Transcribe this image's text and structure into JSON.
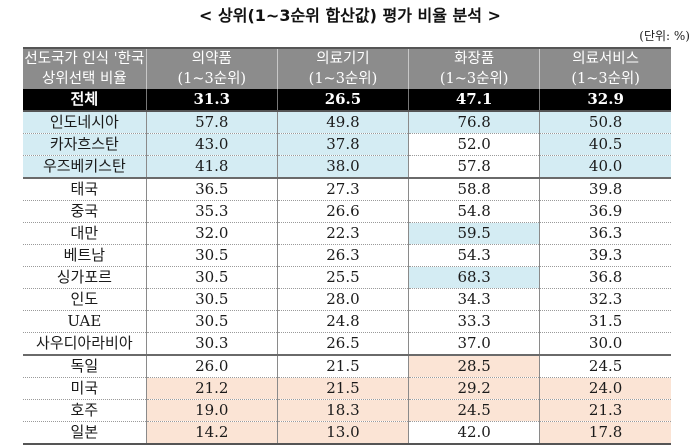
{
  "title": "< 상위(1~3순위 합산값) 평가 비율 분석 >",
  "unit": "(단위: %)",
  "header": {
    "row1": [
      "선도국가 인식 '한국",
      "의약품",
      "의료기기",
      "화장품",
      "의료서비스"
    ],
    "row2": [
      "상위선택 비율",
      "(1~3순위)",
      "(1~3순위)",
      "(1~3순위)",
      "(1~3순위)"
    ]
  },
  "total": {
    "label": "전체",
    "values": [
      "31.3",
      "26.5",
      "47.1",
      "32.9"
    ]
  },
  "rows": [
    {
      "country": "인도네시아",
      "values": [
        "57.8",
        "49.8",
        "76.8",
        "50.8"
      ]
    },
    {
      "country": "카자흐스탄",
      "values": [
        "43.0",
        "37.8",
        "52.0",
        "40.5"
      ]
    },
    {
      "country": "우즈베키스탄",
      "values": [
        "41.8",
        "38.0",
        "57.8",
        "40.0"
      ]
    },
    {
      "country": "태국",
      "values": [
        "36.5",
        "27.3",
        "58.8",
        "39.8"
      ]
    },
    {
      "country": "중국",
      "values": [
        "35.3",
        "26.6",
        "54.8",
        "36.9"
      ]
    },
    {
      "country": "대만",
      "values": [
        "32.0",
        "22.3",
        "59.5",
        "36.3"
      ]
    },
    {
      "country": "베트남",
      "values": [
        "30.5",
        "26.3",
        "54.3",
        "39.3"
      ]
    },
    {
      "country": "싱가포르",
      "values": [
        "30.5",
        "25.5",
        "68.3",
        "36.8"
      ]
    },
    {
      "country": "인도",
      "values": [
        "30.5",
        "28.0",
        "34.3",
        "32.3"
      ]
    },
    {
      "country": "UAE",
      "values": [
        "30.5",
        "24.8",
        "33.3",
        "31.5"
      ]
    },
    {
      "country": "사우디아라비아",
      "values": [
        "30.3",
        "26.5",
        "37.0",
        "30.0"
      ]
    },
    {
      "country": "독일",
      "values": [
        "26.0",
        "21.5",
        "28.5",
        "24.5"
      ]
    },
    {
      "country": "미국",
      "values": [
        "21.2",
        "21.5",
        "29.2",
        "24.0"
      ]
    },
    {
      "country": "호주",
      "values": [
        "19.0",
        "18.3",
        "24.5",
        "21.3"
      ]
    },
    {
      "country": "일본",
      "values": [
        "14.2",
        "13.0",
        "42.0",
        "17.8"
      ]
    }
  ],
  "colors": {
    "highlight_high": "#d4ecf3",
    "highlight_low": "#fbe4d5",
    "header_bg": "#8c8c8c",
    "total_bg": "#000000"
  }
}
